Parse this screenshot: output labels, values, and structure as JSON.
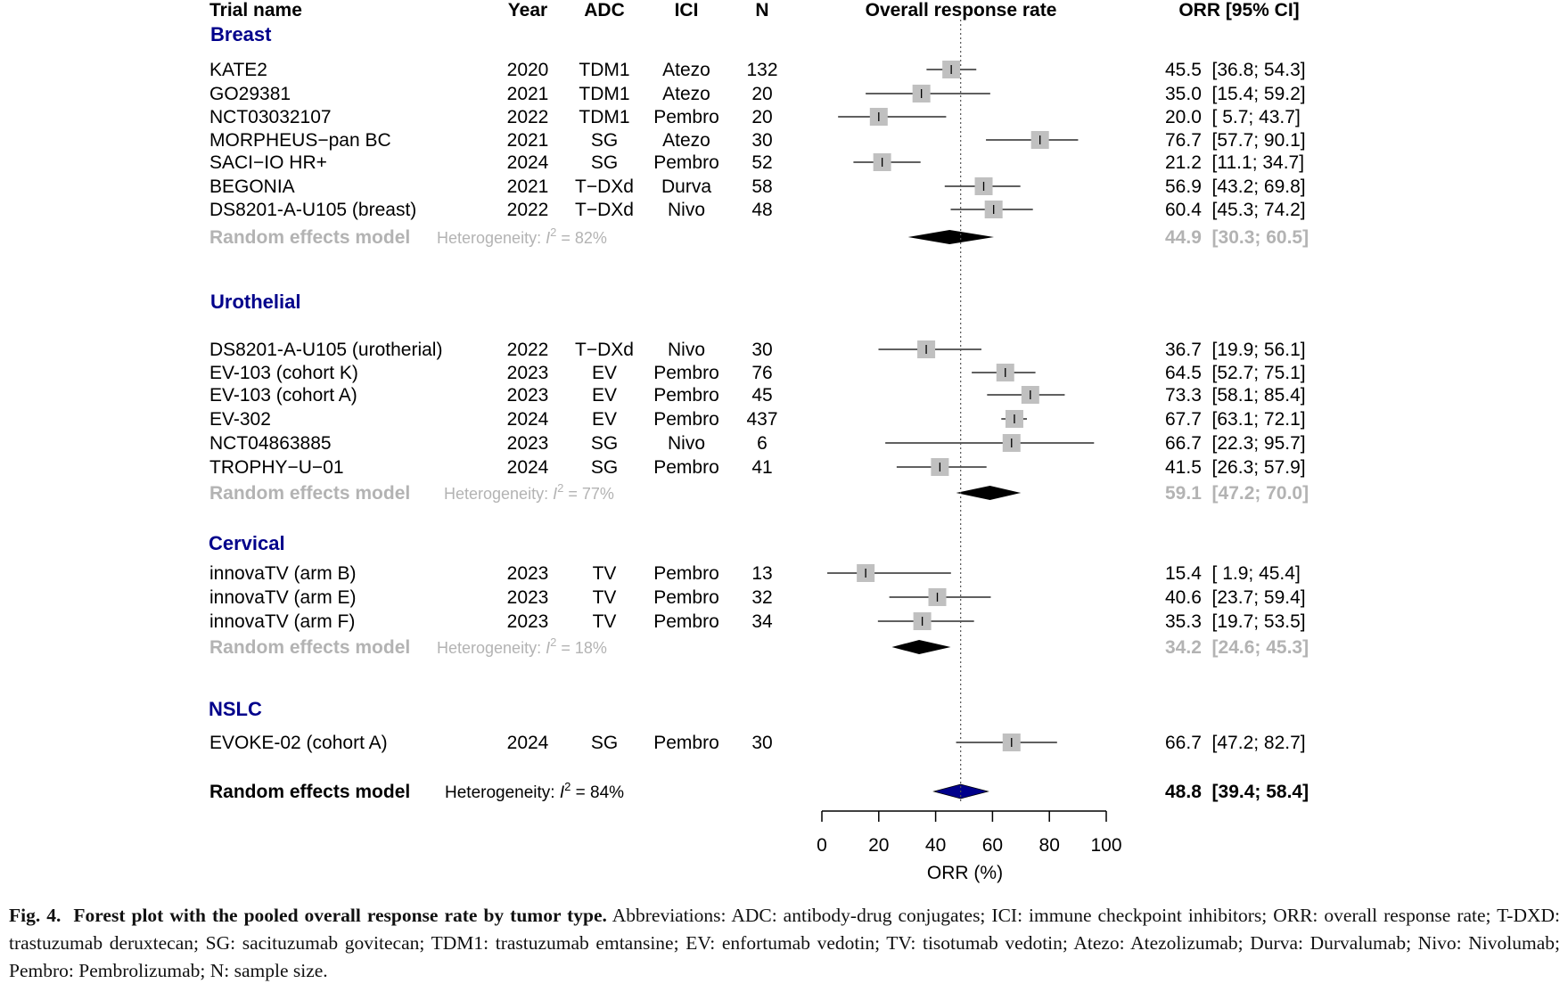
{
  "headers": {
    "trial": "Trial name",
    "year": "Year",
    "adc": "ADC",
    "ici": "ICI",
    "n": "N",
    "plot": "Overall response rate",
    "orr": "ORR [95% CI]"
  },
  "chart_data": {
    "type": "forest",
    "xlabel": "ORR (%)",
    "xlim": [
      0,
      100
    ],
    "xticks": [
      "0",
      "20",
      "40",
      "60",
      "80",
      "100"
    ],
    "reference_line": 48.8,
    "groups": [
      {
        "name": "Breast",
        "studies": [
          {
            "trial": "KATE2",
            "year": "2020",
            "adc": "TDM1",
            "ici": "Atezo",
            "n": "132",
            "est": 45.5,
            "lo": 36.8,
            "hi": 54.3,
            "text": "45.5  [36.8; 54.3]"
          },
          {
            "trial": "GO29381",
            "year": "2021",
            "adc": "TDM1",
            "ici": "Atezo",
            "n": "20",
            "est": 35.0,
            "lo": 15.4,
            "hi": 59.2,
            "text": "35.0  [15.4; 59.2]"
          },
          {
            "trial": "NCT03032107",
            "year": "2022",
            "adc": "TDM1",
            "ici": "Pembro",
            "n": "20",
            "est": 20.0,
            "lo": 5.7,
            "hi": 43.7,
            "text": "20.0  [ 5.7; 43.7]"
          },
          {
            "trial": "MORPHEUS−pan BC",
            "year": "2021",
            "adc": "SG",
            "ici": "Atezo",
            "n": "30",
            "est": 76.7,
            "lo": 57.7,
            "hi": 90.1,
            "text": "76.7  [57.7; 90.1]"
          },
          {
            "trial": "SACI−IO HR+",
            "year": "2024",
            "adc": "SG",
            "ici": "Pembro",
            "n": "52",
            "est": 21.2,
            "lo": 11.1,
            "hi": 34.7,
            "text": "21.2  [11.1; 34.7]"
          },
          {
            "trial": "BEGONIA",
            "year": "2021",
            "adc": "T−DXd",
            "ici": "Durva",
            "n": "58",
            "est": 56.9,
            "lo": 43.2,
            "hi": 69.8,
            "text": "56.9  [43.2; 69.8]"
          },
          {
            "trial": "DS8201-A-U105 (breast)",
            "year": "2022",
            "adc": "T−DXd",
            "ici": "Nivo",
            "n": "48",
            "est": 60.4,
            "lo": 45.3,
            "hi": 74.2,
            "text": "60.4  [45.3; 74.2]"
          }
        ],
        "pooled": {
          "label": "Random effects model",
          "het_prefix": "Heterogeneity: ",
          "het_i": "I",
          "het_sup": "2",
          "het_value": " = 82%",
          "est": 44.9,
          "lo": 30.3,
          "hi": 60.5,
          "text": "44.9  [30.3; 60.5]"
        }
      },
      {
        "name": "Urothelial",
        "studies": [
          {
            "trial": "DS8201-A-U105 (urotherial)",
            "year": "2022",
            "adc": "T−DXd",
            "ici": "Nivo",
            "n": "30",
            "est": 36.7,
            "lo": 19.9,
            "hi": 56.1,
            "text": "36.7  [19.9; 56.1]"
          },
          {
            "trial": "EV-103 (cohort K)",
            "year": "2023",
            "adc": "EV",
            "ici": "Pembro",
            "n": "76",
            "est": 64.5,
            "lo": 52.7,
            "hi": 75.1,
            "text": "64.5  [52.7; 75.1]"
          },
          {
            "trial": "EV-103 (cohort A)",
            "year": "2023",
            "adc": "EV",
            "ici": "Pembro",
            "n": "45",
            "est": 73.3,
            "lo": 58.1,
            "hi": 85.4,
            "text": "73.3  [58.1; 85.4]"
          },
          {
            "trial": "EV-302",
            "year": "2024",
            "adc": "EV",
            "ici": "Pembro",
            "n": "437",
            "est": 67.7,
            "lo": 63.1,
            "hi": 72.1,
            "text": "67.7  [63.1; 72.1]"
          },
          {
            "trial": "NCT04863885",
            "year": "2023",
            "adc": "SG",
            "ici": "Nivo",
            "n": "6",
            "est": 66.7,
            "lo": 22.3,
            "hi": 95.7,
            "text": "66.7  [22.3; 95.7]"
          },
          {
            "trial": "TROPHY−U−01",
            "year": "2024",
            "adc": "SG",
            "ici": "Pembro",
            "n": "41",
            "est": 41.5,
            "lo": 26.3,
            "hi": 57.9,
            "text": "41.5  [26.3; 57.9]"
          }
        ],
        "pooled": {
          "label": "Random effects model",
          "het_prefix": "Heterogeneity: ",
          "het_i": "I",
          "het_sup": "2",
          "het_value": " = 77%",
          "est": 59.1,
          "lo": 47.2,
          "hi": 70.0,
          "text": "59.1  [47.2; 70.0]"
        }
      },
      {
        "name": "Cervical",
        "studies": [
          {
            "trial": "innovaTV (arm B)",
            "year": "2023",
            "adc": "TV",
            "ici": "Pembro",
            "n": "13",
            "est": 15.4,
            "lo": 1.9,
            "hi": 45.4,
            "text": "15.4  [ 1.9; 45.4]"
          },
          {
            "trial": "innovaTV (arm E)",
            "year": "2023",
            "adc": "TV",
            "ici": "Pembro",
            "n": "32",
            "est": 40.6,
            "lo": 23.7,
            "hi": 59.4,
            "text": "40.6  [23.7; 59.4]"
          },
          {
            "trial": "innovaTV (arm F)",
            "year": "2023",
            "adc": "TV",
            "ici": "Pembro",
            "n": "34",
            "est": 35.3,
            "lo": 19.7,
            "hi": 53.5,
            "text": "35.3  [19.7; 53.5]"
          }
        ],
        "pooled": {
          "label": "Random effects model",
          "het_prefix": "Heterogeneity: ",
          "het_i": "I",
          "het_sup": "2",
          "het_value": " = 18%",
          "est": 34.2,
          "lo": 24.6,
          "hi": 45.3,
          "text": "34.2  [24.6; 45.3]"
        }
      },
      {
        "name": "NSLC",
        "studies": [
          {
            "trial": "EVOKE-02 (cohort A)",
            "year": "2024",
            "adc": "SG",
            "ici": "Pembro",
            "n": "30",
            "est": 66.7,
            "lo": 47.2,
            "hi": 82.7,
            "text": "66.7  [47.2; 82.7]"
          }
        ],
        "pooled": null
      }
    ],
    "overall": {
      "label": "Random effects model",
      "het_prefix": "Heterogeneity: ",
      "het_i": "I",
      "het_sup": "2",
      "het_value": " = 84%",
      "est": 48.8,
      "lo": 39.4,
      "hi": 58.4,
      "text": "48.8  [39.4; 58.4]"
    },
    "colors": {
      "box": "#c0c0c0",
      "diamond_subgroup": "#000000",
      "diamond_overall": "#00008b",
      "group_title": "#00008b",
      "pooled_text": "#b3b3b3"
    }
  },
  "caption": {
    "fig": "Fig. 4.",
    "title": "Forest plot with the pooled overall response rate by tumor type.",
    "text": "Abbreviations: ADC: antibody-drug conjugates; ICI: immune checkpoint inhibitors; ORR: overall response rate; T-DXD: trastuzumab deruxtecan; SG: sacituzumab govitecan; TDM1: trastuzumab emtansine; EV: enfortumab vedotin; TV: tisotumab vedotin; Atezo: Atezolizumab; Durva: Durvalumab; Nivo: Nivolumab; Pembro: Pembrolizumab; N: sample size."
  }
}
